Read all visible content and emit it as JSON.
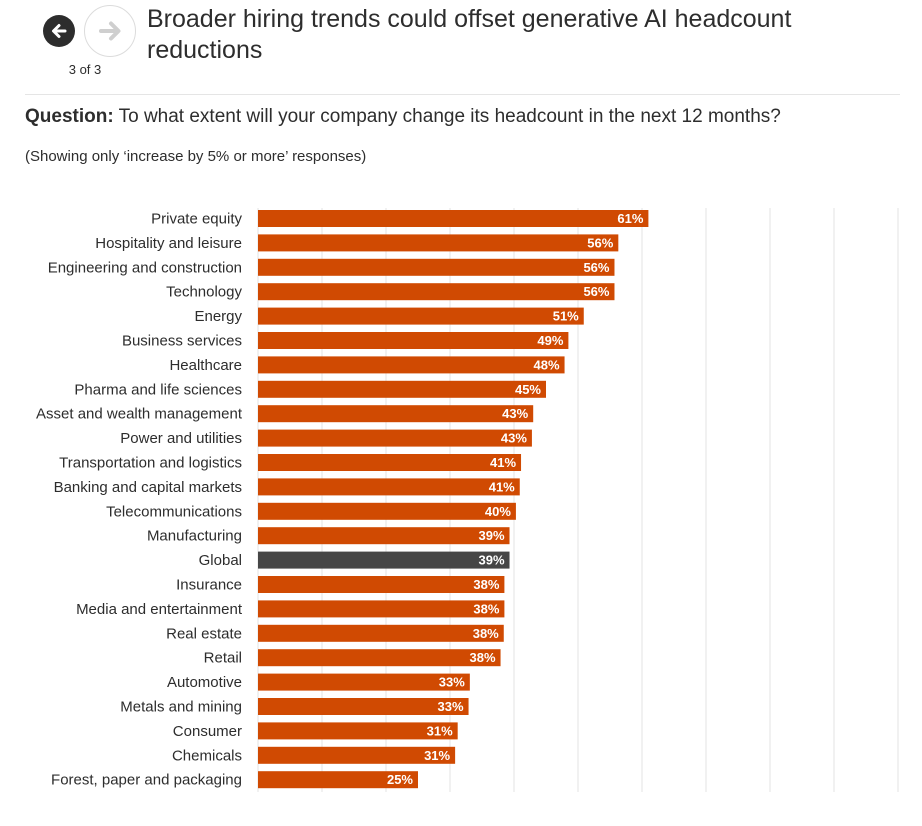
{
  "nav": {
    "prev_icon": "arrow-left-icon",
    "next_icon": "arrow-right-icon",
    "pager_text": "3 of 3"
  },
  "title": "Broader hiring trends could offset generative AI headcount reductions",
  "question": {
    "label": "Question:",
    "text": "To what extent will your company change its headcount in the next 12 months?"
  },
  "note": "(Showing only ‘increase by 5% or more’ responses)",
  "colors": {
    "bar": "#d04a02",
    "highlight_bar": "#464646",
    "grid": "#e3e3e3",
    "text": "#2d2d2d"
  },
  "chart_data": {
    "type": "bar",
    "orientation": "horizontal",
    "title": "Broader hiring trends could offset generative AI headcount reductions",
    "xlabel": "",
    "ylabel": "",
    "xlim": [
      0,
      100
    ],
    "grid": true,
    "value_format": "percent",
    "highlight": "Global",
    "categories": [
      "Private equity",
      "Hospitality and leisure",
      "Engineering and construction",
      "Technology",
      "Energy",
      "Business services",
      "Healthcare",
      "Pharma and life sciences",
      "Asset and wealth management",
      "Power and utilities",
      "Transportation and logistics",
      "Banking and capital markets",
      "Telecommunications",
      "Manufacturing",
      "Global",
      "Insurance",
      "Media and entertainment",
      "Real estate",
      "Retail",
      "Automotive",
      "Metals and mining",
      "Consumer",
      "Chemicals",
      "Forest, paper and packaging"
    ],
    "values": [
      61,
      56,
      56,
      56,
      51,
      49,
      48,
      45,
      43,
      43,
      41,
      41,
      40,
      39,
      39,
      38,
      38,
      38,
      38,
      33,
      33,
      31,
      31,
      25
    ],
    "plotted_values": [
      61.0,
      56.3,
      55.7,
      55.7,
      50.9,
      48.5,
      47.9,
      45.0,
      43.0,
      42.8,
      41.1,
      40.9,
      40.3,
      39.3,
      39.3,
      38.5,
      38.5,
      38.4,
      37.9,
      33.1,
      32.9,
      31.2,
      30.8,
      25.0
    ],
    "labels": [
      "61%",
      "56%",
      "56%",
      "56%",
      "51%",
      "49%",
      "48%",
      "45%",
      "43%",
      "43%",
      "41%",
      "41%",
      "40%",
      "39%",
      "39%",
      "38%",
      "38%",
      "38%",
      "38%",
      "33%",
      "33%",
      "31%",
      "31%",
      "25%"
    ]
  }
}
